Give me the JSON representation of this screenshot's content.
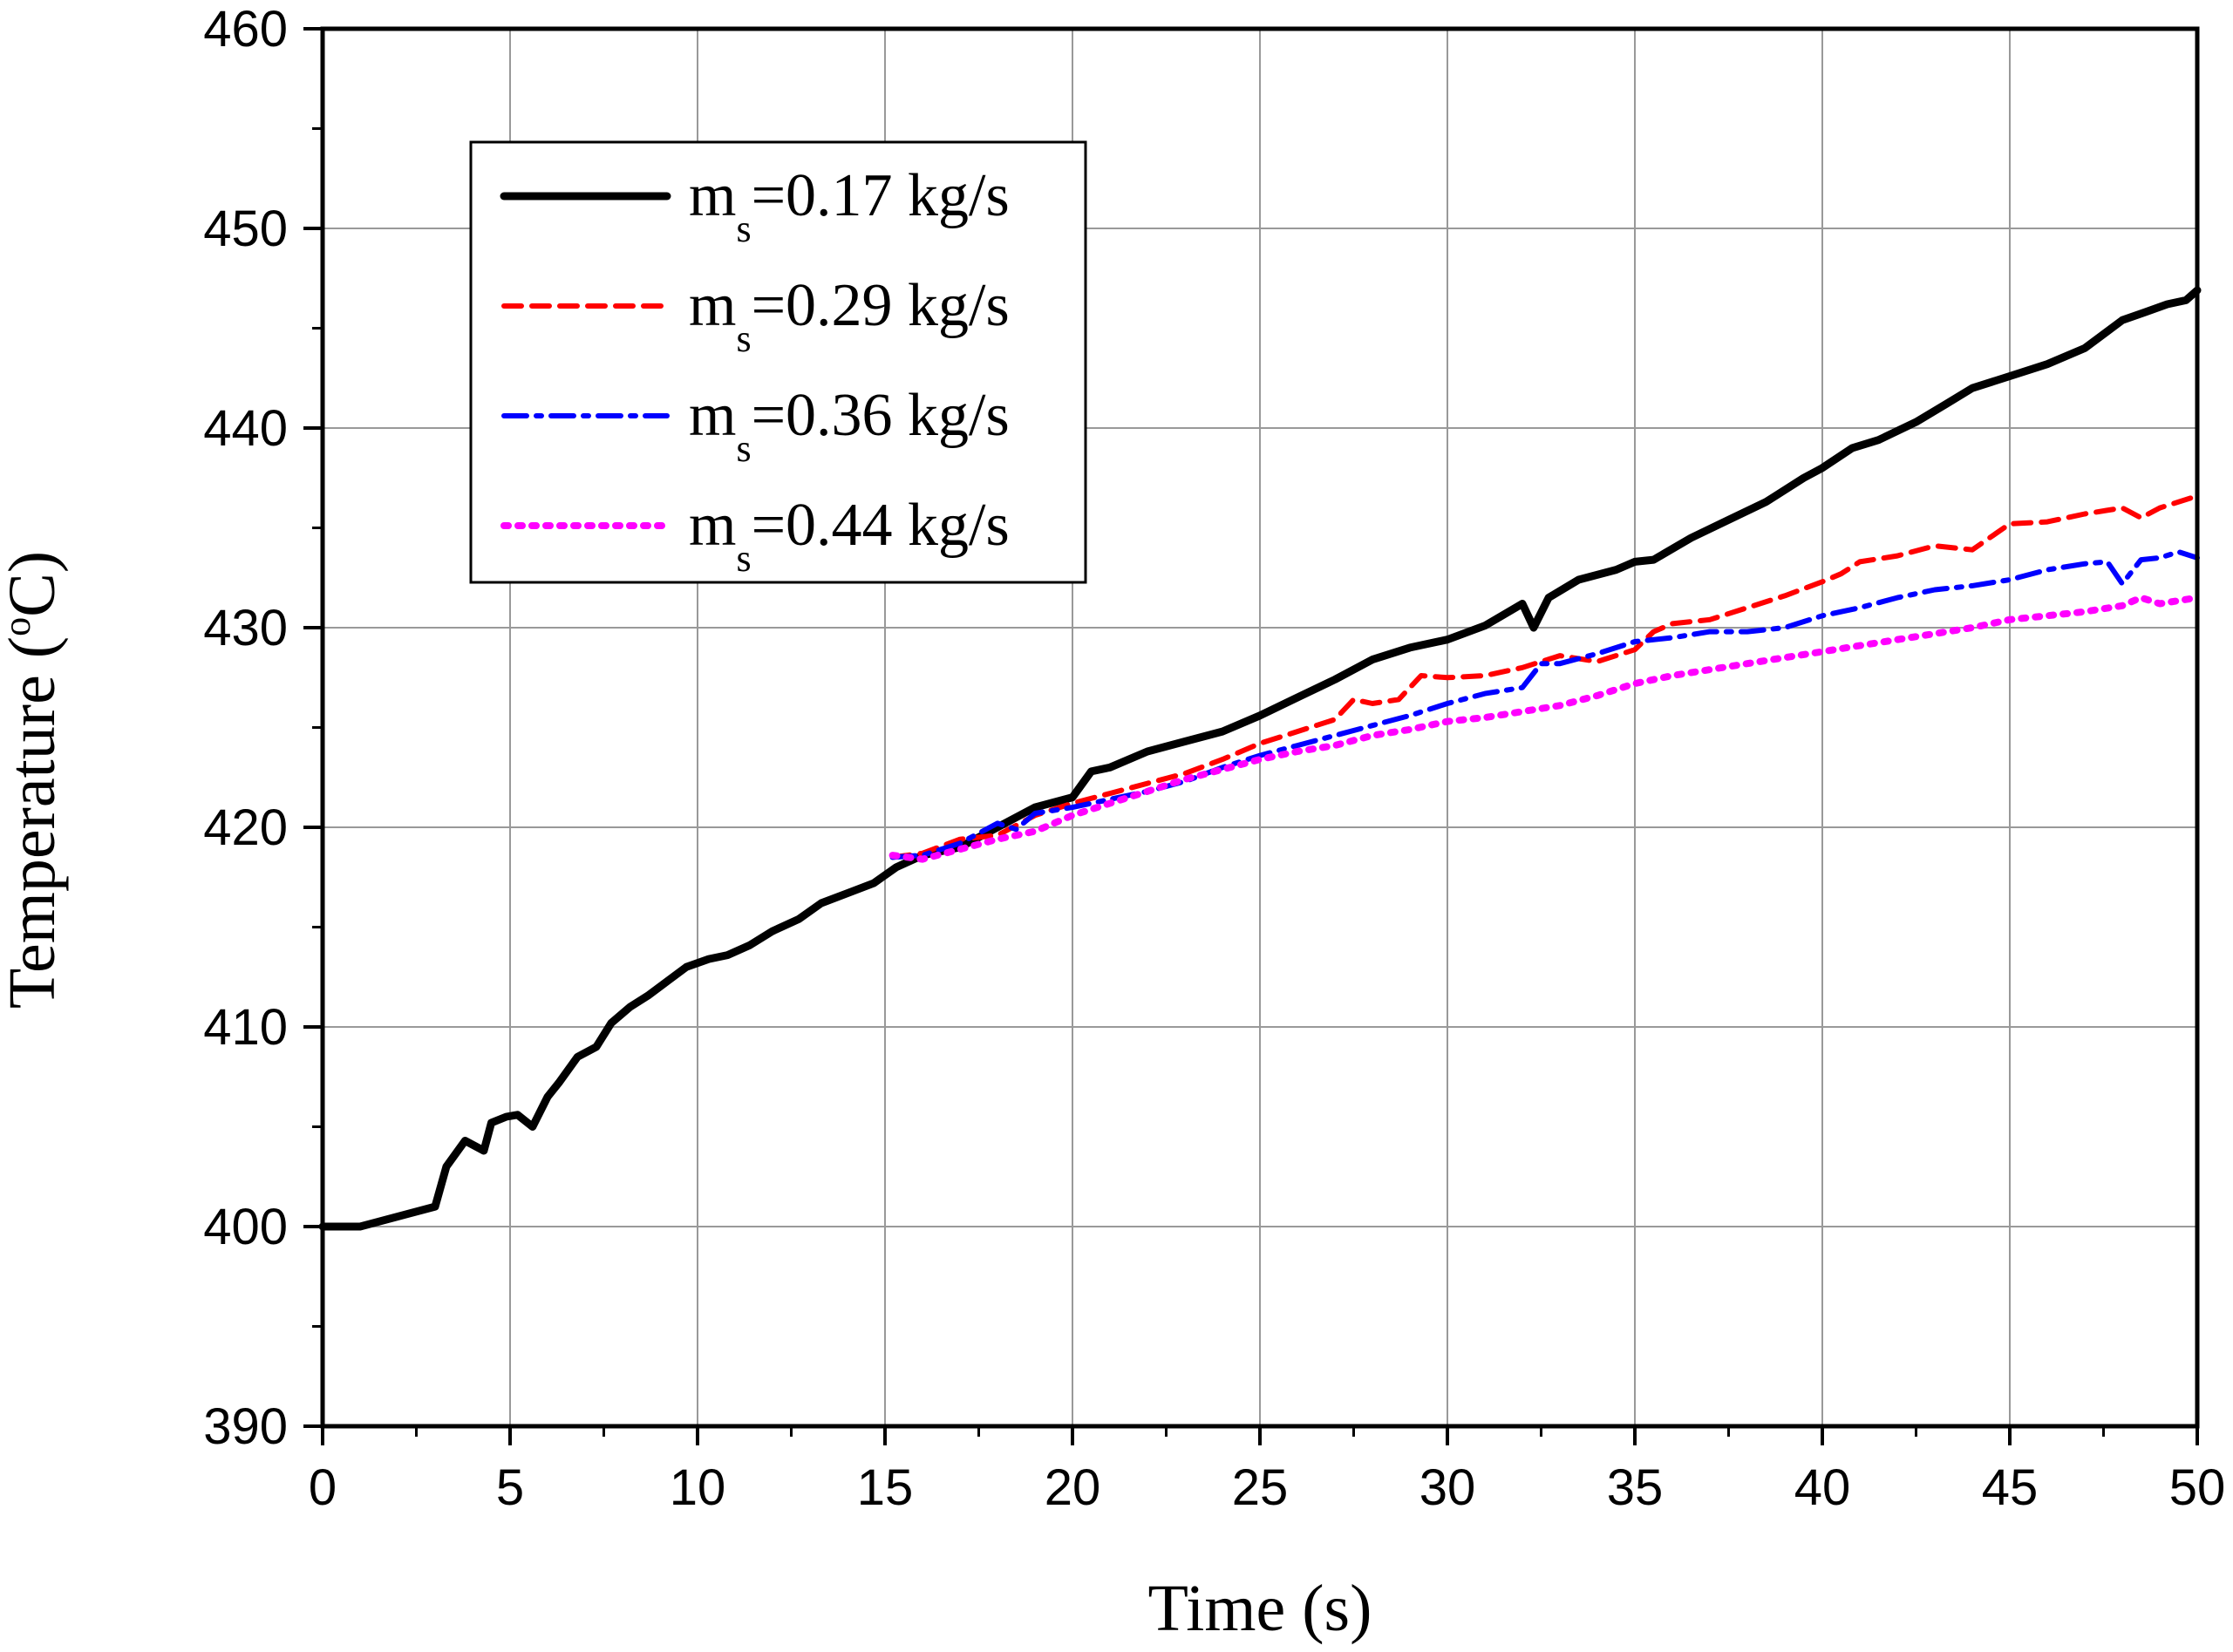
{
  "chart_data": {
    "type": "line",
    "title": "",
    "xlabel": "Time (s)",
    "ylabel_prefix": "Temperature (",
    "ylabel_sup": "o",
    "ylabel_suffix": "C)",
    "xlim": [
      0,
      50
    ],
    "ylim": [
      390,
      460
    ],
    "xticks": [
      0,
      5,
      10,
      15,
      20,
      25,
      30,
      35,
      40,
      45,
      50
    ],
    "yticks": [
      390,
      400,
      410,
      420,
      430,
      440,
      450,
      460
    ],
    "grid": true,
    "legend_position": "top-left",
    "series": [
      {
        "name": "ms=0.17 kg/s",
        "legend_main": "m",
        "legend_sub": "s",
        "legend_value": "=0.17 kg/s",
        "color": "#000000",
        "style": "solid",
        "x": [
          0,
          1,
          3,
          3.3,
          3.8,
          4.3,
          4.5,
          4.9,
          5.2,
          5.6,
          6.0,
          6.3,
          6.8,
          7.3,
          7.7,
          8.2,
          8.7,
          9.2,
          9.7,
          10.3,
          10.8,
          11.4,
          12.0,
          12.7,
          13.3,
          14.0,
          14.7,
          15.3,
          16.0,
          17.0,
          18.0,
          19.0,
          20.0,
          20.5,
          21.0,
          22.0,
          23.0,
          24.0,
          25.0,
          26.0,
          27.0,
          28.0,
          29.0,
          30.0,
          31.0,
          32.0,
          32.3,
          32.7,
          33.5,
          34.5,
          35.0,
          35.5,
          36.5,
          37.5,
          38.5,
          39.5,
          40.0,
          40.8,
          41.5,
          42.5,
          43.3,
          44.0,
          45.0,
          46.0,
          47.0,
          48.0,
          48.6,
          49.2,
          49.7,
          50.0
        ],
        "y": [
          400,
          400,
          401,
          403,
          404.3,
          403.8,
          405.2,
          405.5,
          405.6,
          405.0,
          406.5,
          407.2,
          408.5,
          409.0,
          410.2,
          411.0,
          411.6,
          412.3,
          413.0,
          413.4,
          413.6,
          414.1,
          414.8,
          415.4,
          416.2,
          416.7,
          417.2,
          418.0,
          418.6,
          419.0,
          420.0,
          421.0,
          421.5,
          422.8,
          423.0,
          423.8,
          424.3,
          424.8,
          425.6,
          426.5,
          427.4,
          428.4,
          429.0,
          429.4,
          430.1,
          431.2,
          430.0,
          431.5,
          432.4,
          432.9,
          433.3,
          433.4,
          434.5,
          435.4,
          436.3,
          437.5,
          438.0,
          439.0,
          439.4,
          440.3,
          441.2,
          442.0,
          442.6,
          443.2,
          444.0,
          445.4,
          445.8,
          446.2,
          446.4,
          446.9
        ]
      },
      {
        "name": "ms=0.29 kg/s",
        "legend_main": "m",
        "legend_sub": "s",
        "legend_value": "=0.29 kg/s",
        "color": "#ff0000",
        "style": "dashed",
        "x": [
          15.2,
          16.0,
          17.0,
          18.0,
          19.0,
          20.0,
          21.0,
          22.0,
          23.0,
          24.0,
          25.0,
          26.0,
          27.0,
          27.5,
          28.0,
          28.7,
          29.3,
          30.0,
          31.0,
          32.0,
          33.0,
          34.0,
          35.0,
          35.5,
          36.0,
          37.0,
          38.0,
          39.0,
          40.0,
          40.5,
          41.0,
          42.0,
          43.0,
          44.0,
          45.0,
          46.0,
          47.0,
          48.0,
          48.5,
          49.0,
          50.0
        ],
        "y": [
          418.5,
          418.7,
          419.4,
          419.6,
          420.6,
          421.2,
          421.7,
          422.2,
          422.7,
          423.4,
          424.2,
          424.8,
          425.4,
          426.4,
          426.2,
          426.4,
          427.6,
          427.5,
          427.6,
          428.0,
          428.6,
          428.3,
          428.9,
          429.8,
          430.2,
          430.4,
          431.0,
          431.6,
          432.3,
          432.7,
          433.3,
          433.6,
          434.1,
          433.9,
          435.2,
          435.3,
          435.7,
          436.0,
          435.5,
          436.0,
          436.6
        ]
      },
      {
        "name": "ms=0.36 kg/s",
        "legend_main": "m",
        "legend_sub": "s",
        "legend_value": "=0.36 kg/s",
        "color": "#0000ff",
        "style": "dashdot",
        "x": [
          15.2,
          16.0,
          17.0,
          18.0,
          18.5,
          19.0,
          20.0,
          21.0,
          22.0,
          23.0,
          24.0,
          25.0,
          26.0,
          27.0,
          28.0,
          29.0,
          30.0,
          31.0,
          32.0,
          32.5,
          33.0,
          34.0,
          35.0,
          36.0,
          37.0,
          38.0,
          39.0,
          40.0,
          41.0,
          42.0,
          43.0,
          44.0,
          45.0,
          46.0,
          47.0,
          47.6,
          48.0,
          48.5,
          49.0,
          49.5,
          50.0
        ],
        "y": [
          418.5,
          418.6,
          419.2,
          420.2,
          419.9,
          420.7,
          421.0,
          421.4,
          421.8,
          422.3,
          423.0,
          423.6,
          424.1,
          424.6,
          425.1,
          425.6,
          426.2,
          426.7,
          427.0,
          428.2,
          428.2,
          428.7,
          429.3,
          429.5,
          429.8,
          429.8,
          430.0,
          430.6,
          431.0,
          431.5,
          431.9,
          432.1,
          432.4,
          432.9,
          433.2,
          433.3,
          432.2,
          433.4,
          433.5,
          433.8,
          433.5
        ]
      },
      {
        "name": "ms=0.44 kg/s",
        "legend_main": "m",
        "legend_sub": "s",
        "legend_value": "=0.44 kg/s",
        "color": "#ff00ff",
        "style": "dotted",
        "x": [
          15.2,
          16.0,
          17.0,
          18.0,
          19.0,
          20.0,
          21.0,
          22.0,
          23.0,
          24.0,
          25.0,
          26.0,
          27.0,
          28.0,
          29.0,
          30.0,
          31.0,
          32.0,
          33.0,
          34.0,
          35.0,
          36.0,
          37.0,
          38.0,
          39.0,
          40.0,
          41.0,
          42.0,
          43.0,
          44.0,
          45.0,
          46.0,
          47.0,
          48.0,
          48.5,
          49.0,
          50.0
        ],
        "y": [
          418.6,
          418.4,
          418.9,
          419.4,
          419.8,
          420.6,
          421.2,
          421.8,
          422.4,
          422.9,
          423.4,
          423.8,
          424.1,
          424.6,
          424.9,
          425.3,
          425.5,
          425.8,
          426.1,
          426.6,
          427.2,
          427.6,
          427.9,
          428.2,
          428.5,
          428.8,
          429.1,
          429.4,
          429.7,
          430.0,
          430.4,
          430.6,
          430.8,
          431.1,
          431.5,
          431.2,
          431.5
        ]
      }
    ]
  }
}
